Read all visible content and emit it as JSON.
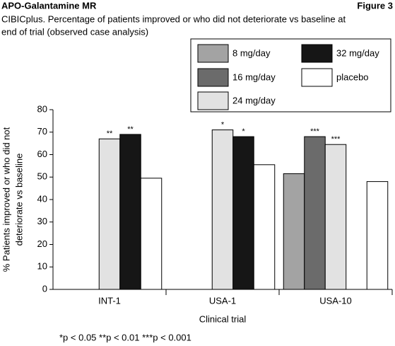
{
  "chart_data": {
    "type": "bar",
    "title": "APO-Galantamine MR",
    "figure_label": "Figure 3",
    "subtitle": [
      "CIBICplus. Percentage of patients improved or who did not deteriorate vs baseline at",
      "end of trial (observed case analysis)"
    ],
    "x_label": "Clinical trial",
    "y_label": [
      "% Patients improved or who did not",
      "deteriorate vs baseline"
    ],
    "footnote": "*p < 0.05  **p < 0.01  ***p < 0.001",
    "categories": [
      "INT-1",
      "USA-1",
      "USA-10"
    ],
    "series": [
      {
        "name": "8 mg/day",
        "color": "#a3a3a3",
        "values": [
          null,
          null,
          51.5
        ],
        "markers": [
          null,
          null,
          null
        ]
      },
      {
        "name": "16 mg/day",
        "color": "#6b6b6b",
        "values": [
          null,
          null,
          68
        ],
        "markers": [
          null,
          null,
          "***"
        ]
      },
      {
        "name": "24 mg/day",
        "color": "#e2e2e2",
        "values": [
          67,
          71,
          64.5
        ],
        "markers": [
          "**",
          "*",
          "***"
        ]
      },
      {
        "name": "32 mg/day",
        "color": "#161616",
        "values": [
          69,
          68,
          null
        ],
        "markers": [
          "**",
          "*",
          null
        ]
      },
      {
        "name": "placebo",
        "color": "#ffffff",
        "values": [
          49.5,
          55.5,
          48
        ],
        "markers": [
          null,
          null,
          null
        ]
      }
    ],
    "ylim": [
      0,
      80
    ],
    "yticks": [
      0,
      10,
      20,
      30,
      40,
      50,
      60,
      70,
      80
    ],
    "grid": false
  }
}
